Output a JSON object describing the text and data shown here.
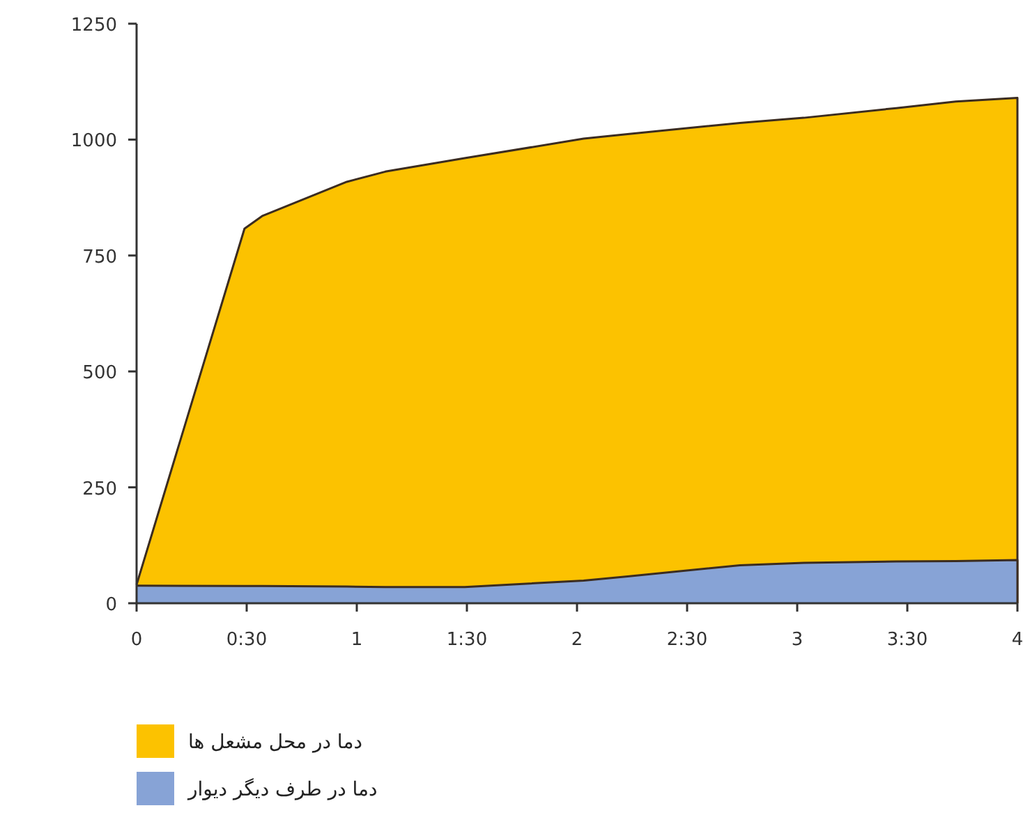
{
  "chart_data": {
    "type": "area",
    "x": [
      0,
      0.49,
      0.57,
      0.955,
      1.13,
      1.49,
      2.03,
      2.23,
      2.74,
      3.03,
      3.45,
      3.72,
      4
    ],
    "series": [
      {
        "name": "دما در محل مشعل ها",
        "color": "#fcc200",
        "values": [
          40,
          808,
          835,
          909,
          931,
          960,
          1002,
          1012,
          1036,
          1047,
          1068,
          1082,
          1090
        ]
      },
      {
        "name": "دما در طرف دیگر دیوار",
        "color": "#87a3d6",
        "values": [
          38,
          37,
          37,
          36,
          35,
          35,
          49,
          58,
          82,
          87,
          90,
          91,
          93
        ]
      }
    ],
    "xlim": [
      0,
      4
    ],
    "xticks": [
      0,
      {
        "value": 0.5,
        "label": "0:30"
      },
      1,
      {
        "value": 1.5,
        "label": "1:30"
      },
      2,
      {
        "value": 2.5,
        "label": "2:30"
      },
      3,
      {
        "value": 3.5,
        "label": "3:30"
      },
      4
    ],
    "ylim": [
      0,
      1250
    ],
    "yticks": [
      0,
      250,
      500,
      750,
      1000,
      1250
    ],
    "grid": false,
    "legend": "bottom"
  }
}
